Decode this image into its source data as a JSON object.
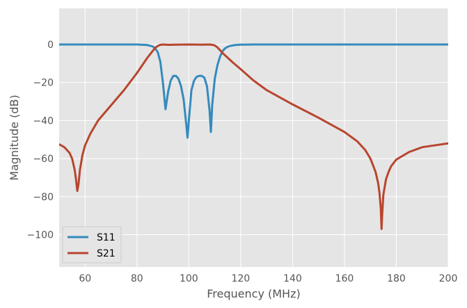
{
  "chart_data": {
    "type": "line",
    "title": "",
    "xlabel": "Frequency (MHz)",
    "ylabel": "Magnitude (dB)",
    "xlim": [
      50,
      200
    ],
    "ylim": [
      -117,
      19
    ],
    "xticks": [
      60,
      80,
      100,
      120,
      140,
      160,
      180,
      200
    ],
    "yticks": [
      0,
      -20,
      -40,
      -60,
      -80,
      -100
    ],
    "xtick_labels": [
      "60",
      "80",
      "100",
      "120",
      "140",
      "160",
      "180",
      "200"
    ],
    "ytick_labels": [
      "0",
      "−20",
      "−40",
      "−60",
      "−80",
      "−100"
    ],
    "grid": true,
    "legend_position": "lower-left",
    "background_color": "#e5e5e5",
    "grid_color": "#ffffff",
    "series": [
      {
        "name": "S11",
        "color": "#348abd",
        "x": [
          50,
          60,
          70,
          80,
          84,
          86,
          87,
          88,
          89,
          90,
          91,
          92,
          93,
          94,
          95,
          96,
          97,
          98,
          99,
          99.5,
          100,
          101,
          102,
          103,
          104,
          105,
          106,
          107,
          108,
          108.5,
          109,
          110,
          111,
          112,
          113,
          114,
          115,
          116,
          118,
          120,
          125,
          130,
          150,
          200
        ],
        "y": [
          0,
          0,
          0,
          0,
          -0.3,
          -1,
          -2,
          -4,
          -9,
          -20,
          -34,
          -25,
          -19,
          -16.5,
          -16.5,
          -18,
          -22,
          -29,
          -42,
          -49,
          -40,
          -24,
          -19,
          -17,
          -16.5,
          -16.5,
          -17.5,
          -22,
          -35,
          -46,
          -32,
          -18,
          -11,
          -6.5,
          -3.5,
          -2,
          -1.2,
          -0.7,
          -0.3,
          -0.1,
          0,
          0,
          0,
          0
        ]
      },
      {
        "name": "S21",
        "color": "#b8452f",
        "x": [
          50,
          52,
          54,
          55,
          56,
          56.5,
          57,
          57.5,
          58,
          59,
          60,
          62,
          65,
          70,
          75,
          80,
          84,
          86,
          87,
          88,
          89,
          90,
          92,
          95,
          100,
          105,
          108,
          109,
          110,
          111,
          112,
          113,
          115,
          117,
          120,
          125,
          130,
          140,
          150,
          160,
          165,
          168,
          170,
          172,
          173,
          173.5,
          174,
          174.3,
          174.6,
          175,
          176,
          177,
          178,
          180,
          185,
          190,
          195,
          200
        ],
        "y": [
          -52.5,
          -54,
          -57,
          -60,
          -66,
          -71,
          -77,
          -73,
          -66,
          -58,
          -53,
          -47,
          -40,
          -32,
          -24,
          -15,
          -7,
          -3.5,
          -1.8,
          -0.8,
          -0.2,
          0,
          -0.2,
          -0.1,
          0,
          -0.1,
          0,
          -0.2,
          -0.5,
          -1.5,
          -3,
          -4.5,
          -7,
          -9.5,
          -13,
          -19,
          -24,
          -31.5,
          -38.5,
          -46,
          -51,
          -55.5,
          -60,
          -67,
          -73,
          -78,
          -86,
          -97,
          -88,
          -79,
          -71,
          -67,
          -64,
          -60.5,
          -56.5,
          -54,
          -53,
          -52
        ]
      }
    ]
  }
}
